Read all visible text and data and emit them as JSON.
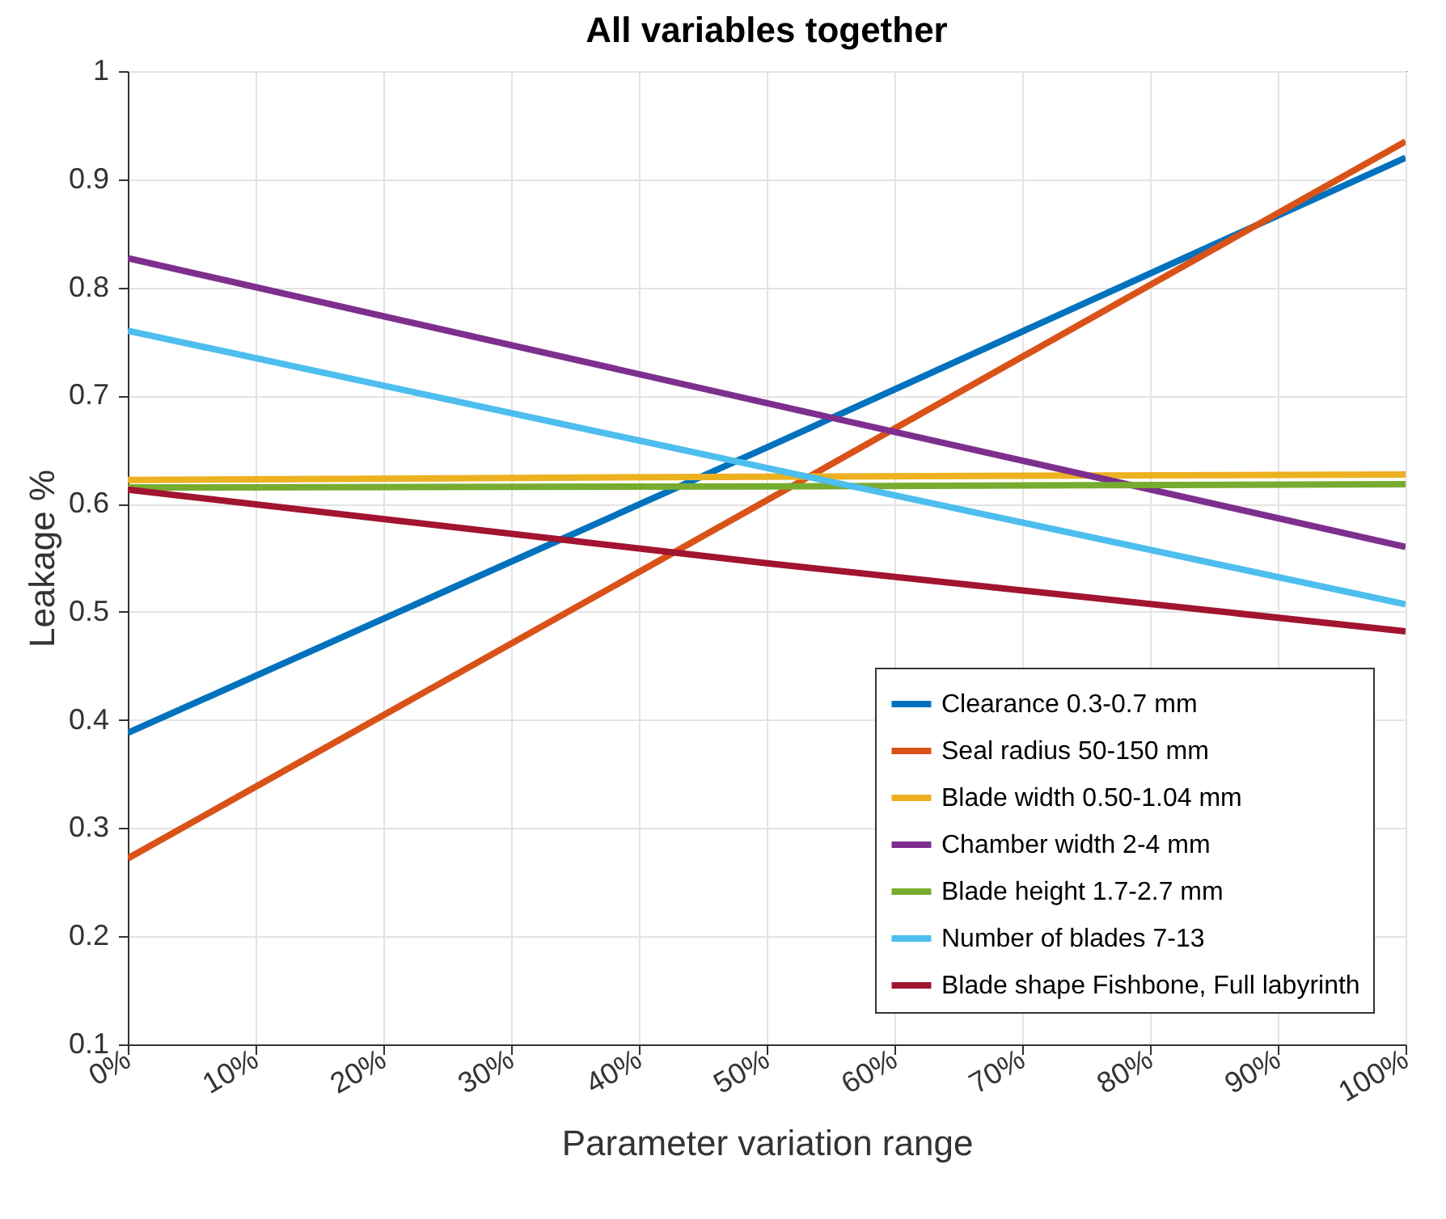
{
  "chart_data": {
    "type": "line",
    "title": "All variables together",
    "xlabel": "Parameter variation range",
    "ylabel": "Leakage %",
    "x": [
      0,
      50,
      100
    ],
    "series": [
      {
        "name": "Clearance 0.3-0.7 mm",
        "color": "#0072bd",
        "values": [
          0.388,
          0.652,
          0.92
        ]
      },
      {
        "name": "Seal radius 50-150 mm",
        "color": "#d95319",
        "values": [
          0.272,
          0.603,
          0.935
        ]
      },
      {
        "name": "Blade width 0.50-1.04 mm",
        "color": "#edb120",
        "values": [
          0.622,
          0.625,
          0.627
        ]
      },
      {
        "name": "Chamber width 2-4 mm",
        "color": "#7e2f8e",
        "values": [
          0.827,
          0.693,
          0.56
        ]
      },
      {
        "name": "Blade height 1.7-2.7 mm",
        "color": "#77ac30",
        "values": [
          0.615,
          0.616,
          0.618
        ]
      },
      {
        "name": "Number of blades 7-13",
        "color": "#4dbeee",
        "values": [
          0.76,
          0.633,
          0.507
        ]
      },
      {
        "name": "Blade shape Fishbone, Full labyrinth",
        "color": "#a2142f",
        "values": [
          0.613,
          0.545,
          0.482
        ]
      }
    ],
    "xlim": [
      0,
      100
    ],
    "ylim": [
      0.1,
      1
    ],
    "xticks": [
      {
        "value": 0,
        "label": "0%"
      },
      {
        "value": 10,
        "label": "10%"
      },
      {
        "value": 20,
        "label": "20%"
      },
      {
        "value": 30,
        "label": "30%"
      },
      {
        "value": 40,
        "label": "40%"
      },
      {
        "value": 50,
        "label": "50%"
      },
      {
        "value": 60,
        "label": "60%"
      },
      {
        "value": 70,
        "label": "70%"
      },
      {
        "value": 80,
        "label": "80%"
      },
      {
        "value": 90,
        "label": "90%"
      },
      {
        "value": 100,
        "label": "100%"
      }
    ],
    "yticks": [
      0.1,
      0.2,
      0.3,
      0.4,
      0.5,
      0.6,
      0.7,
      0.8,
      0.9,
      1
    ],
    "grid": true,
    "legend": "bottom right",
    "marker": "none",
    "line_style": "solid"
  }
}
